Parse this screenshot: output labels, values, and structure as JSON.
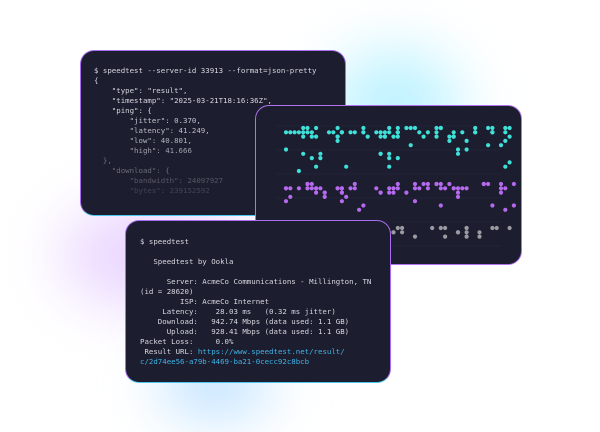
{
  "back_terminal": {
    "lines": [
      {
        "text": "$ speedtest --server-id 33913 --format=json-pretty",
        "opacity": 1
      },
      {
        "text": "{",
        "opacity": 1
      },
      {
        "text": "    \"type\": \"result\",",
        "opacity": 1
      },
      {
        "text": "    \"timestamp\": \"2025-03-21T18:16:36Z\",",
        "opacity": 1
      },
      {
        "text": "    \"ping\": {",
        "opacity": 1
      },
      {
        "text": "        \"jitter\": 0.370,",
        "opacity": 0.9
      },
      {
        "text": "        \"latency\": 41.249,",
        "opacity": 0.85
      },
      {
        "text": "        \"low\": 40.801,",
        "opacity": 0.8
      },
      {
        "text": "        \"high\": 41.666",
        "opacity": 0.7
      },
      {
        "text": "  },",
        "opacity": 0.45
      },
      {
        "text": "    \"download\": {",
        "opacity": 0.4
      },
      {
        "text": "        \"bandwidth\": 24097927",
        "opacity": 0.3
      },
      {
        "text": "        \"bytes\": 239152592",
        "opacity": 0.2
      }
    ]
  },
  "front_terminal": {
    "command": "$ speedtest",
    "title": "   Speedtest by Ookla",
    "lines": [
      "      Server: AcmeCo Communications - Millington, TN",
      "(id = 28620)",
      "         ISP: AcmeCo Internet",
      "     Latency:    28.03 ms   (0.32 ms jitter)",
      "    Download:   942.74 Mbps (data used: 1.1 GB)",
      "      Upload:   928.41 Mbps (data used: 1.1 GB)",
      "Packet Loss:     0.0%"
    ],
    "result_label": " Result URL: ",
    "result_url_1": "https://www.speedtest.net/result/",
    "result_url_2": "c/2d74ee56-a79b-4469-ba21-0cecc92c8bcb"
  },
  "colors": {
    "terminal_bg": "#1c1d2e",
    "cyan_dots": "#3fe0d8",
    "purple_dots": "#b569ee",
    "gray_dots": "#9a9aa0",
    "link": "#3fb3e8"
  }
}
